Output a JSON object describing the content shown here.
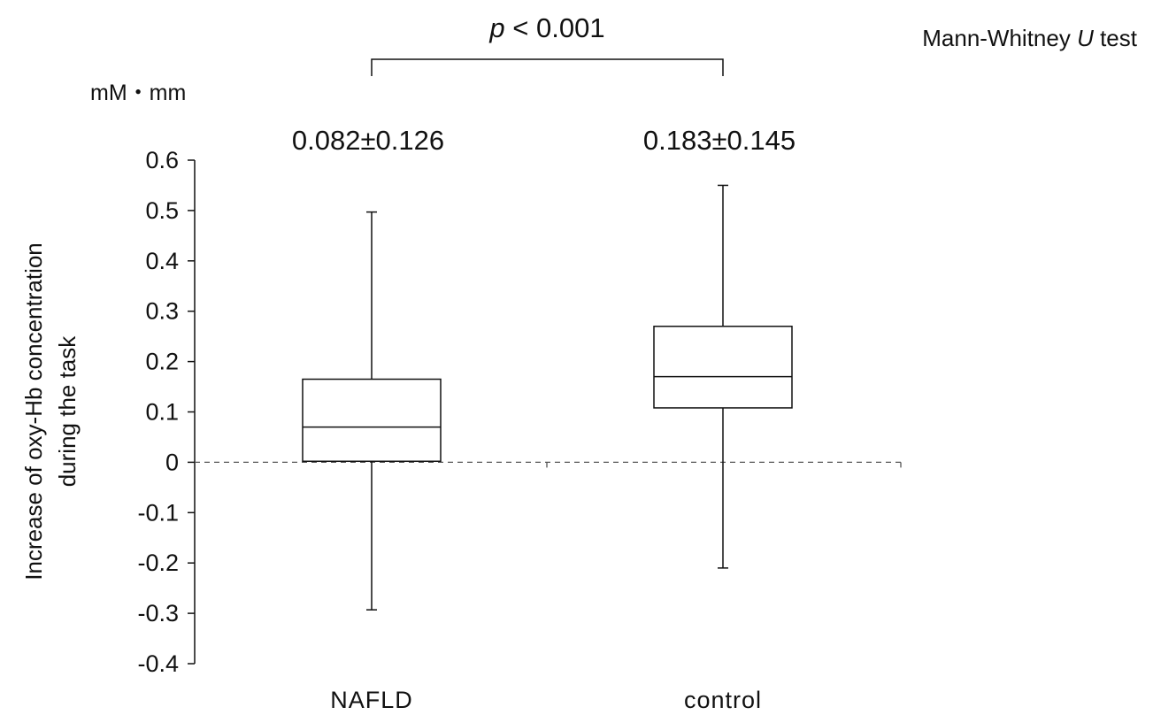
{
  "chart_data": {
    "type": "box",
    "ylim": [
      -0.4,
      0.6
    ],
    "yticks": [
      0.6,
      0.5,
      0.4,
      0.3,
      0.2,
      0.1,
      0,
      -0.1,
      -0.2,
      -0.3,
      -0.4
    ],
    "ytick_labels": [
      "0.6",
      "0.5",
      "0.4",
      "0.3",
      "0.2",
      "0.1",
      "0",
      "-0.1",
      "-0.2",
      "-0.3",
      "-0.4"
    ],
    "ylabel_line1": "Increase of oxy-Hb concentration",
    "ylabel_line2": "during the task",
    "unit": "mM・mm",
    "grid": false,
    "reference_line": 0,
    "categories": [
      "NAFLD",
      "control"
    ],
    "boxes": [
      {
        "category": "NAFLD",
        "whisker_low": -0.293,
        "q1": 0.002,
        "median": 0.07,
        "q3": 0.165,
        "whisker_high": 0.497,
        "mean_sd": "0.082±0.126"
      },
      {
        "category": "control",
        "whisker_low": -0.21,
        "q1": 0.108,
        "median": 0.17,
        "q3": 0.27,
        "whisker_high": 0.55,
        "mean_sd": "0.183±0.145"
      }
    ],
    "comparison": {
      "p_symbol": "p",
      "p_text": " < 0.001"
    },
    "test": {
      "prefix": "Mann-Whitney ",
      "italic": "U",
      "suffix": " test"
    }
  }
}
